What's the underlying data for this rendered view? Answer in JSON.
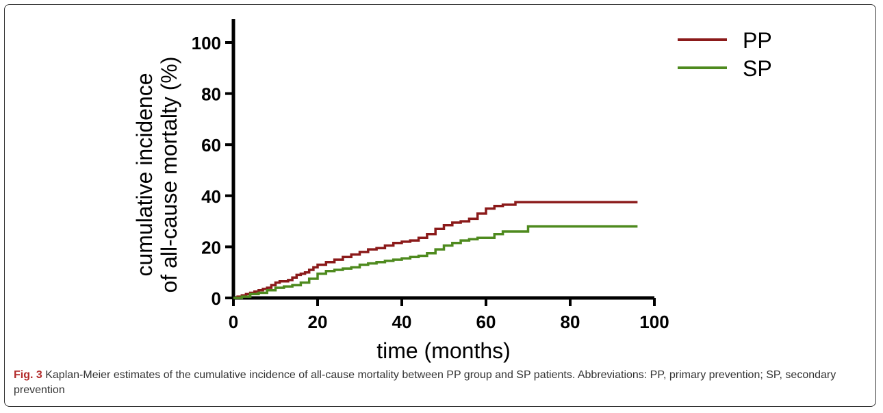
{
  "chart_data": {
    "type": "line",
    "xlabel": "time (months)",
    "ylabel_lines": [
      "cumulative incidence",
      "of all-cause mortalty (%)"
    ],
    "xlim": [
      0,
      100
    ],
    "ylim": [
      0,
      110
    ],
    "xticks": [
      0,
      20,
      40,
      60,
      80,
      100
    ],
    "yticks": [
      0,
      20,
      40,
      60,
      80,
      100
    ],
    "grid": false,
    "legend_position": "top-right",
    "series": [
      {
        "name": "PP",
        "color": "#8b1a1a",
        "x": [
          0,
          1,
          2,
          3,
          4,
          5,
          6,
          7,
          8,
          9,
          10,
          11,
          12,
          13,
          14,
          15,
          16,
          17,
          18,
          19,
          20,
          22,
          24,
          26,
          28,
          30,
          32,
          34,
          36,
          38,
          40,
          42,
          44,
          46,
          48,
          50,
          52,
          54,
          56,
          58,
          60,
          62,
          64,
          67,
          70,
          80,
          96
        ],
        "y": [
          0,
          0.5,
          1,
          1.5,
          2,
          2.5,
          3,
          3.5,
          4,
          5,
          6,
          6.5,
          6.5,
          7,
          8,
          9,
          9.5,
          10,
          11,
          12,
          13,
          14,
          15,
          16,
          17,
          18,
          19,
          19.5,
          20.5,
          21.5,
          22,
          22.5,
          23.5,
          25,
          27,
          28.5,
          29.5,
          30,
          31,
          33,
          35,
          36,
          36.5,
          37.5,
          37.5,
          37.5,
          37.5
        ]
      },
      {
        "name": "SP",
        "color": "#4e8a1e",
        "x": [
          0,
          2,
          4,
          6,
          8,
          10,
          12,
          14,
          16,
          18,
          20,
          22,
          24,
          26,
          28,
          30,
          32,
          34,
          36,
          38,
          40,
          42,
          44,
          46,
          48,
          50,
          52,
          54,
          56,
          58,
          60,
          62,
          64,
          66,
          68,
          70,
          80,
          96
        ],
        "y": [
          0,
          0.5,
          1.5,
          2,
          3,
          4,
          4.5,
          5,
          6,
          7.5,
          9.5,
          10.5,
          11,
          11.5,
          12,
          13,
          13.5,
          14,
          14.5,
          15,
          15.5,
          16,
          16.5,
          17.5,
          19,
          20.5,
          21.5,
          22.5,
          23,
          23.5,
          23.5,
          25,
          26,
          26,
          26,
          28,
          28,
          28
        ]
      }
    ]
  },
  "caption": {
    "label": "Fig. 3",
    "text": " Kaplan-Meier estimates of the cumulative incidence of all-cause mortality between PP group and SP patients. Abbreviations: PP, primary prevention; SP, secondary prevention"
  }
}
